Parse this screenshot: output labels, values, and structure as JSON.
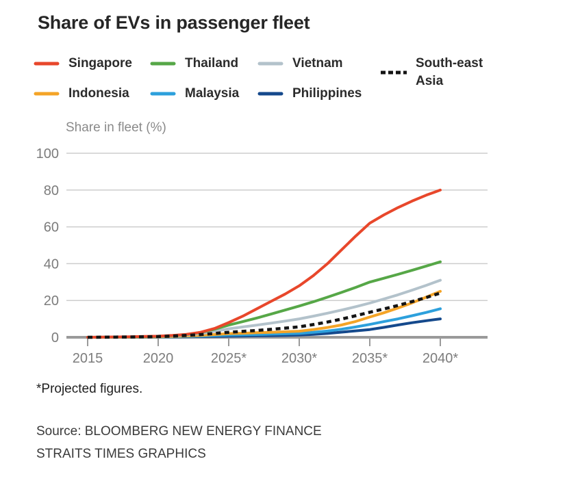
{
  "chart_data": {
    "type": "line",
    "title": "Share of EVs in passenger fleet",
    "ylabel": "Share in fleet (%)",
    "xlabel": "",
    "ylim": [
      0,
      100
    ],
    "yticks": [
      0,
      20,
      40,
      60,
      80,
      100
    ],
    "xtick_labels": [
      "2015",
      "2020",
      "2025*",
      "2030*",
      "2035*",
      "2040*"
    ],
    "xtick_years": [
      2015,
      2020,
      2025,
      2030,
      2035,
      2040
    ],
    "x": [
      2015,
      2016,
      2017,
      2018,
      2019,
      2020,
      2021,
      2022,
      2023,
      2024,
      2025,
      2026,
      2027,
      2028,
      2029,
      2030,
      2031,
      2032,
      2033,
      2034,
      2035,
      2036,
      2037,
      2038,
      2039,
      2040
    ],
    "grid": true,
    "legend_position": "top",
    "series": [
      {
        "name": "Philippines",
        "color": "#15498c",
        "dash": false,
        "values": [
          0,
          0,
          0,
          0.05,
          0.1,
          0.15,
          0.2,
          0.3,
          0.4,
          0.5,
          0.6,
          0.7,
          0.8,
          0.9,
          1.0,
          1.2,
          1.6,
          2.1,
          2.8,
          3.5,
          4.2,
          5.4,
          6.7,
          7.9,
          9.0,
          10
        ]
      },
      {
        "name": "Malaysia",
        "color": "#2da0dc",
        "dash": false,
        "values": [
          0,
          0,
          0.05,
          0.1,
          0.15,
          0.2,
          0.3,
          0.45,
          0.65,
          0.9,
          1.2,
          1.35,
          1.5,
          1.7,
          1.9,
          2.1,
          2.7,
          3.4,
          4.4,
          5.6,
          7.0,
          8.5,
          10.0,
          11.7,
          13.5,
          15.5
        ]
      },
      {
        "name": "Indonesia",
        "color": "#f4a427",
        "dash": false,
        "values": [
          0,
          0,
          0.05,
          0.1,
          0.15,
          0.25,
          0.4,
          0.7,
          1.0,
          1.5,
          2.0,
          2.2,
          2.5,
          2.7,
          3.0,
          3.3,
          4.2,
          5.3,
          6.7,
          8.6,
          11.0,
          13.3,
          15.9,
          18.7,
          21.8,
          25
        ]
      },
      {
        "name": "Vietnam",
        "color": "#b3c2cb",
        "dash": false,
        "values": [
          0,
          0.05,
          0.1,
          0.15,
          0.25,
          0.4,
          0.7,
          1.2,
          2.0,
          3.2,
          4.6,
          5.6,
          6.6,
          7.7,
          8.8,
          10.0,
          11.5,
          13.1,
          14.8,
          16.6,
          18.6,
          20.8,
          23.1,
          25.6,
          28.2,
          31
        ]
      },
      {
        "name": "Thailand",
        "color": "#56a747",
        "dash": false,
        "values": [
          0,
          0.05,
          0.1,
          0.2,
          0.3,
          0.5,
          0.9,
          1.5,
          2.6,
          4.4,
          6.6,
          8.5,
          10.5,
          12.6,
          14.8,
          17.0,
          19.3,
          21.8,
          24.4,
          27.1,
          30.0,
          32.1,
          34.2,
          36.4,
          38.7,
          41
        ]
      },
      {
        "name": "Singapore",
        "color": "#e8472b",
        "dash": false,
        "values": [
          0,
          0.1,
          0.2,
          0.3,
          0.45,
          0.6,
          1.0,
          1.6,
          2.7,
          4.8,
          8.0,
          11.5,
          15.5,
          19.5,
          23.5,
          28.0,
          33.5,
          40.0,
          47.5,
          55.0,
          62.0,
          66.5,
          70.5,
          74.0,
          77.2,
          80
        ]
      },
      {
        "name": "South-east Asia",
        "color": "#141414",
        "dash": true,
        "values": [
          0,
          0.05,
          0.1,
          0.15,
          0.25,
          0.4,
          0.65,
          1.0,
          1.5,
          2.1,
          2.7,
          3.2,
          3.7,
          4.3,
          5.0,
          5.7,
          6.9,
          8.3,
          9.9,
          11.7,
          13.6,
          15.4,
          17.3,
          19.4,
          21.6,
          24
        ]
      }
    ]
  },
  "legend": {
    "items": [
      {
        "series": "Singapore",
        "wrap": false
      },
      {
        "series": "Thailand",
        "wrap": false
      },
      {
        "series": "Vietnam",
        "wrap": false
      },
      {
        "series": "South-east Asia",
        "wrap": true
      },
      {
        "series": "Indonesia",
        "wrap": false
      },
      {
        "series": "Malaysia",
        "wrap": false
      },
      {
        "series": "Philippines",
        "wrap": false
      }
    ]
  },
  "footer": {
    "footnote": "*Projected figures.",
    "source_line1": "Source: BLOOMBERG NEW ENERGY FINANCE",
    "source_line2": "STRAITS TIMES GRAPHICS"
  }
}
